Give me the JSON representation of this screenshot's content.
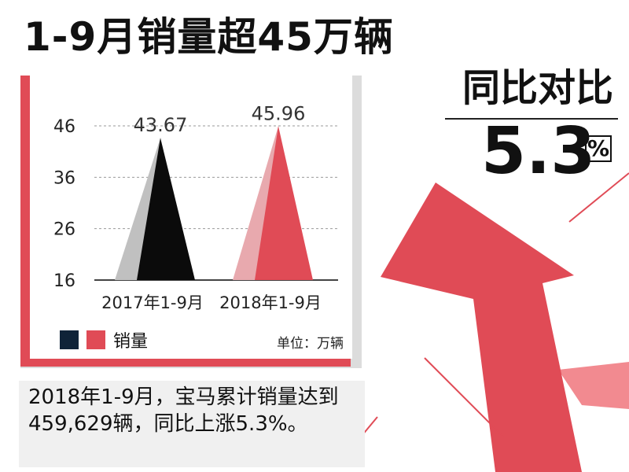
{
  "headline": "1-9月销量超45万辆",
  "yoy": {
    "label": "同比对比",
    "value": "5.3",
    "unit": "%"
  },
  "legend": {
    "label": "销量",
    "unit_note": "单位：万辆"
  },
  "summary": "2018年1-9月，宝马累计销量达到459,629辆，同比上涨5.3%。",
  "colors": {
    "red": "#e04b56",
    "pink": "#e8a9ae",
    "black": "#0b0b0b",
    "gray": "#c0c0c0",
    "navy": "#0f2338"
  },
  "chart_data": {
    "type": "bar",
    "categories": [
      "2017年1-9月",
      "2018年1-9月"
    ],
    "values": [
      43.67,
      45.96
    ],
    "value_labels": [
      "43.67",
      "45.96"
    ],
    "yticks": [
      16,
      26,
      36,
      46
    ],
    "ylim": [
      16,
      46
    ],
    "series": [
      {
        "name": "销量",
        "values": [
          43.67,
          45.96
        ]
      }
    ],
    "grid": true,
    "legend_position": "bottom-left"
  }
}
